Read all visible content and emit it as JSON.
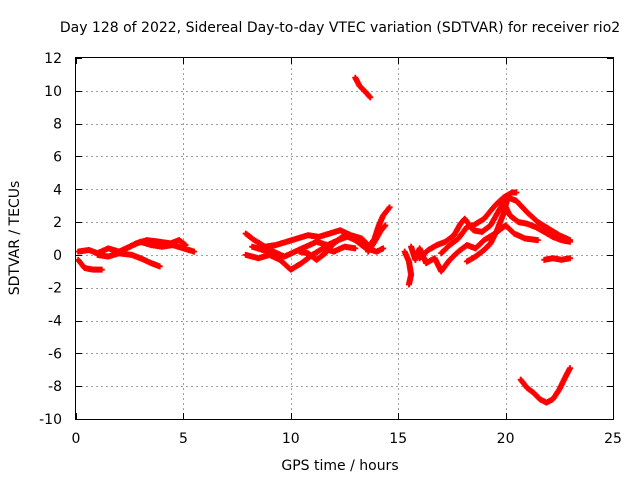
{
  "chart_data": {
    "type": "scatter",
    "title": "Day 128 of 2022, Sidereal Day-to-day VTEC variation (SDTVAR) for receiver rio2",
    "xlabel": "GPS time / hours",
    "ylabel": "SDTVAR / TECUs",
    "xlim": [
      0,
      25
    ],
    "ylim": [
      -10,
      12
    ],
    "xticks": [
      0,
      5,
      10,
      15,
      20,
      25
    ],
    "yticks": [
      -10,
      -8,
      -6,
      -4,
      -2,
      0,
      2,
      4,
      6,
      8,
      10,
      12
    ],
    "grid": true,
    "marker": "+",
    "series": [
      {
        "name": "SDTVAR",
        "color": "#ff0000",
        "tracks": [
          [
            [
              0.1,
              0.2
            ],
            [
              0.6,
              0.3
            ],
            [
              1.0,
              0.1
            ],
            [
              1.5,
              0.4
            ],
            [
              2.0,
              0.2
            ],
            [
              2.5,
              0.5
            ],
            [
              3.0,
              0.8
            ],
            [
              3.5,
              0.6
            ],
            [
              4.0,
              0.5
            ],
            [
              4.5,
              0.6
            ],
            [
              5.0,
              0.4
            ],
            [
              5.5,
              0.2
            ]
          ],
          [
            [
              0.1,
              -0.3
            ],
            [
              0.4,
              -0.8
            ],
            [
              0.8,
              -0.9
            ],
            [
              1.2,
              -0.9
            ]
          ],
          [
            [
              1.0,
              0.0
            ],
            [
              1.5,
              -0.1
            ],
            [
              2.0,
              0.1
            ],
            [
              2.6,
              0.0
            ],
            [
              3.0,
              -0.2
            ],
            [
              3.5,
              -0.5
            ],
            [
              3.9,
              -0.7
            ]
          ],
          [
            [
              2.2,
              0.3
            ],
            [
              2.8,
              0.7
            ],
            [
              3.3,
              0.9
            ],
            [
              3.9,
              0.8
            ],
            [
              4.4,
              0.7
            ],
            [
              4.8,
              0.9
            ],
            [
              5.1,
              0.6
            ]
          ],
          [
            [
              7.9,
              1.3
            ],
            [
              8.3,
              0.9
            ],
            [
              8.8,
              0.5
            ],
            [
              9.3,
              0.6
            ],
            [
              9.8,
              0.8
            ],
            [
              10.3,
              1.0
            ],
            [
              10.8,
              1.2
            ],
            [
              11.3,
              1.1
            ],
            [
              11.8,
              1.3
            ],
            [
              12.3,
              1.5
            ],
            [
              12.8,
              1.2
            ],
            [
              13.3,
              1.0
            ],
            [
              13.6,
              0.6
            ]
          ],
          [
            [
              7.9,
              0.0
            ],
            [
              8.5,
              -0.2
            ],
            [
              9.0,
              0.0
            ],
            [
              9.5,
              -0.3
            ],
            [
              10.0,
              -0.9
            ],
            [
              10.5,
              -0.5
            ],
            [
              11.0,
              0.0
            ],
            [
              11.5,
              0.4
            ],
            [
              12.0,
              0.2
            ],
            [
              12.5,
              0.5
            ],
            [
              13.0,
              0.4
            ]
          ],
          [
            [
              8.2,
              0.5
            ],
            [
              8.7,
              0.3
            ],
            [
              9.2,
              0.2
            ],
            [
              9.7,
              -0.1
            ],
            [
              10.2,
              0.2
            ],
            [
              10.7,
              0.5
            ],
            [
              11.2,
              0.8
            ],
            [
              11.7,
              0.6
            ],
            [
              12.2,
              0.9
            ],
            [
              12.6,
              1.1
            ]
          ],
          [
            [
              10.4,
              0.2
            ],
            [
              10.8,
              0.1
            ],
            [
              11.2,
              -0.3
            ],
            [
              11.6,
              0.1
            ],
            [
              12.0,
              0.7
            ],
            [
              12.5,
              1.2
            ],
            [
              13.0,
              0.9
            ],
            [
              13.5,
              0.4
            ],
            [
              14.0,
              0.2
            ],
            [
              14.3,
              0.4
            ]
          ],
          [
            [
              13.6,
              0.4
            ],
            [
              13.9,
              1.0
            ],
            [
              14.1,
              1.8
            ],
            [
              14.3,
              2.4
            ],
            [
              14.6,
              2.9
            ]
          ],
          [
            [
              13.6,
              0.2
            ],
            [
              13.9,
              0.8
            ],
            [
              14.2,
              1.5
            ],
            [
              14.4,
              1.8
            ]
          ],
          [
            [
              13.0,
              10.8
            ],
            [
              13.2,
              10.3
            ],
            [
              13.5,
              9.9
            ],
            [
              13.7,
              9.6
            ]
          ],
          [
            [
              15.3,
              0.2
            ],
            [
              15.5,
              -0.4
            ],
            [
              15.6,
              -1.2
            ],
            [
              15.5,
              -1.8
            ]
          ],
          [
            [
              15.6,
              0.5
            ],
            [
              15.8,
              -0.3
            ],
            [
              16.0,
              0.4
            ],
            [
              16.3,
              -0.5
            ],
            [
              16.7,
              -0.2
            ],
            [
              17.0,
              -1.0
            ],
            [
              17.4,
              -0.3
            ],
            [
              17.8,
              0.2
            ],
            [
              18.2,
              0.6
            ],
            [
              18.6,
              0.4
            ],
            [
              19.0,
              0.9
            ],
            [
              19.5,
              1.3
            ],
            [
              20.0,
              1.8
            ],
            [
              20.4,
              1.3
            ],
            [
              20.9,
              1.0
            ],
            [
              21.5,
              0.9
            ]
          ],
          [
            [
              16.0,
              -0.2
            ],
            [
              16.4,
              0.3
            ],
            [
              16.8,
              0.6
            ],
            [
              17.2,
              0.8
            ],
            [
              17.6,
              1.2
            ],
            [
              17.9,
              1.9
            ],
            [
              18.1,
              2.2
            ],
            [
              18.5,
              1.5
            ],
            [
              18.9,
              1.4
            ],
            [
              19.3,
              1.8
            ],
            [
              19.6,
              2.5
            ],
            [
              19.9,
              3.2
            ],
            [
              20.2,
              2.4
            ],
            [
              20.6,
              2.0
            ],
            [
              21.0,
              1.9
            ],
            [
              21.4,
              1.7
            ],
            [
              21.8,
              1.4
            ],
            [
              22.2,
              1.1
            ],
            [
              22.6,
              0.9
            ],
            [
              23.0,
              0.8
            ]
          ],
          [
            [
              17.0,
              0.1
            ],
            [
              17.4,
              0.6
            ],
            [
              17.8,
              1.0
            ],
            [
              18.2,
              1.7
            ],
            [
              18.5,
              1.8
            ],
            [
              19.0,
              2.2
            ],
            [
              19.5,
              3.0
            ],
            [
              19.9,
              3.5
            ],
            [
              20.3,
              3.8
            ],
            [
              20.5,
              3.8
            ]
          ],
          [
            [
              18.2,
              -0.4
            ],
            [
              18.6,
              -0.1
            ],
            [
              19.0,
              0.3
            ],
            [
              19.3,
              0.7
            ],
            [
              19.6,
              1.5
            ],
            [
              19.9,
              2.5
            ],
            [
              20.1,
              3.5
            ],
            [
              20.5,
              3.3
            ],
            [
              21.0,
              2.6
            ],
            [
              21.5,
              2.0
            ],
            [
              22.0,
              1.6
            ],
            [
              22.5,
              1.2
            ],
            [
              23.0,
              0.9
            ]
          ],
          [
            [
              21.8,
              -0.3
            ],
            [
              22.2,
              -0.2
            ],
            [
              22.6,
              -0.3
            ],
            [
              23.0,
              -0.2
            ]
          ],
          [
            [
              20.7,
              -7.6
            ],
            [
              21.0,
              -8.1
            ],
            [
              21.3,
              -8.4
            ],
            [
              21.6,
              -8.8
            ],
            [
              21.9,
              -9.0
            ],
            [
              22.2,
              -8.8
            ],
            [
              22.5,
              -8.2
            ],
            [
              22.8,
              -7.4
            ],
            [
              23.0,
              -6.9
            ]
          ]
        ]
      }
    ]
  }
}
